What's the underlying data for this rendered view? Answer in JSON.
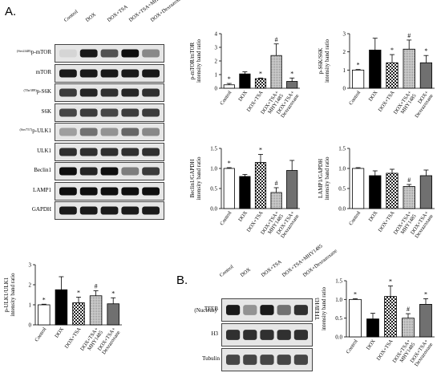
{
  "panelA": {
    "label": "A."
  },
  "panelB": {
    "label": "B."
  },
  "lanes": [
    "Control",
    "DOX",
    "DOX+TSA",
    "DOX+TSA+MHY1485",
    "DOX+Dexrazoxane"
  ],
  "blotsA": [
    {
      "prefix": "(Ser2448)",
      "name": "p-mTOR"
    },
    {
      "prefix": "",
      "name": "mTOR"
    },
    {
      "prefix": "(Thr389)",
      "name": "p-S6K"
    },
    {
      "prefix": "",
      "name": "S6K"
    },
    {
      "prefix": "(Ser757)",
      "name": "p-ULK1"
    },
    {
      "prefix": "",
      "name": "ULK1"
    },
    {
      "prefix": "",
      "name": "Beclin1"
    },
    {
      "prefix": "",
      "name": "LAMP1"
    },
    {
      "prefix": "",
      "name": "GAPDH"
    }
  ],
  "blotsB": {
    "nucleus": "(Nucleus)",
    "rows": [
      "TFEB",
      "H3",
      "Tubulin"
    ]
  },
  "chart_data": [
    {
      "type": "bar",
      "id": "p-mTOR",
      "ylabel": [
        "p-mTOR/mTOR",
        "intensity band ratio"
      ],
      "yticks": [
        "0",
        "1",
        "2",
        "3",
        "4"
      ],
      "ylim": [
        0,
        4
      ],
      "categories": [
        "Control",
        "DOX",
        "DOX+TSA",
        "DOX+TSA+\nMHY1485",
        "DOX+TSA+\nDexrazoxane"
      ],
      "values": [
        0.25,
        1.05,
        0.7,
        2.4,
        0.5
      ],
      "errors": [
        0.1,
        0.15,
        0.05,
        0.85,
        0.25
      ],
      "marks": [
        "*",
        "",
        "*",
        "#",
        "*"
      ]
    },
    {
      "type": "bar",
      "id": "p-S6K",
      "ylabel": [
        "p-S6K/S6K",
        "intensity band ratio"
      ],
      "yticks": [
        "0",
        "1",
        "2",
        "3"
      ],
      "ylim": [
        0,
        3
      ],
      "categories": [
        "Control",
        "DOX",
        "DOX+TSA",
        "DOX+TSA+\nMHY1485",
        "DOX+\nDexrazoxane"
      ],
      "values": [
        1.0,
        2.1,
        1.4,
        2.15,
        1.4
      ],
      "errors": [
        0.03,
        0.65,
        0.45,
        0.5,
        0.4
      ],
      "marks": [
        "*",
        "",
        "*",
        "#",
        "*"
      ]
    },
    {
      "type": "bar",
      "id": "Beclin1",
      "ylabel": [
        "Beclin1/GAPDH",
        "intensity band ratio"
      ],
      "yticks": [
        "0.0",
        "0.5",
        "1.0",
        "1.5"
      ],
      "ylim": [
        0,
        1.5
      ],
      "categories": [
        "Control",
        "DOX",
        "DOX+TSA",
        "DOX+TSA+\nMHY1485",
        "DOX+TSA+\nDexrazoxane"
      ],
      "values": [
        1.0,
        0.8,
        1.15,
        0.4,
        0.95
      ],
      "errors": [
        0.02,
        0.05,
        0.2,
        0.12,
        0.25
      ],
      "marks": [
        "*",
        "",
        "*",
        "#",
        ""
      ]
    },
    {
      "type": "bar",
      "id": "LAMP1",
      "ylabel": [
        "LAMP1/GAPDH",
        "intensity band ratio"
      ],
      "yticks": [
        "0.0",
        "0.5",
        "1.0",
        "1.5"
      ],
      "ylim": [
        0,
        1.5
      ],
      "categories": [
        "Control",
        "DOX",
        "DOX+TSA",
        "DOX+TSA+\nMHY1485",
        "DOX+TSA+\nDexrazoxane"
      ],
      "values": [
        1.0,
        0.82,
        0.88,
        0.55,
        0.82
      ],
      "errors": [
        0.02,
        0.12,
        0.1,
        0.05,
        0.14
      ],
      "marks": [
        "",
        "",
        "",
        "#",
        ""
      ]
    },
    {
      "type": "bar",
      "id": "p-ULK1",
      "ylabel": [
        "p-ULK1/ULK1",
        "intensity band ratio"
      ],
      "yticks": [
        "0",
        "1",
        "2",
        "3"
      ],
      "ylim": [
        0,
        3
      ],
      "categories": [
        "Control",
        "DOX",
        "DOX+TSA",
        "DOX+TSA+\nMHY1485",
        "DOX+TSA+\nDexrazoxane"
      ],
      "values": [
        1.0,
        1.75,
        1.1,
        1.45,
        1.05
      ],
      "errors": [
        0.03,
        0.65,
        0.28,
        0.25,
        0.3
      ],
      "marks": [
        "*",
        "",
        "*",
        "#",
        "*"
      ]
    },
    {
      "type": "bar",
      "id": "TFEB",
      "ylabel": [
        "TFEB/H3",
        "intensity band ratio"
      ],
      "yticks": [
        "0.0",
        "0.5",
        "1.0",
        "1.5"
      ],
      "ylim": [
        0,
        1.5
      ],
      "categories": [
        "Control",
        "DOX",
        "DOX+TSA",
        "DOX+TSA+\nMHY1485",
        "DOX+TSA+\nDexrazoxane"
      ],
      "values": [
        1.0,
        0.48,
        1.08,
        0.5,
        0.87
      ],
      "errors": [
        0.02,
        0.15,
        0.28,
        0.12,
        0.15
      ],
      "marks": [
        "*",
        "",
        "*",
        "#",
        "*"
      ]
    }
  ]
}
